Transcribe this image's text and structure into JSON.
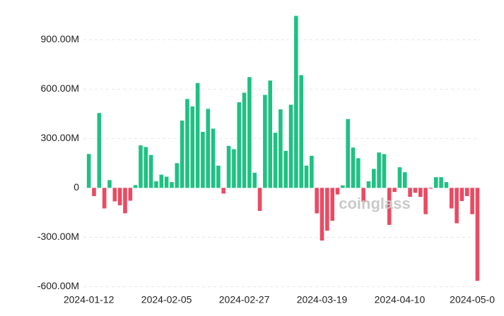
{
  "chart_data": {
    "type": "bar",
    "watermark": "coinglass",
    "categories": [
      "2024-01-12",
      null,
      null,
      null,
      null,
      null,
      null,
      null,
      null,
      null,
      null,
      null,
      null,
      null,
      null,
      "2024-02-05",
      null,
      null,
      null,
      null,
      null,
      null,
      null,
      null,
      null,
      null,
      null,
      null,
      null,
      null,
      "2024-02-27",
      null,
      null,
      null,
      null,
      null,
      null,
      null,
      null,
      null,
      null,
      null,
      null,
      null,
      null,
      "2024-03-19",
      null,
      null,
      null,
      null,
      null,
      null,
      null,
      null,
      null,
      null,
      null,
      null,
      null,
      null,
      "2024-04-10",
      null,
      null,
      null,
      null,
      null,
      null,
      null,
      null,
      null,
      null,
      null,
      null,
      null,
      "2024-05-0",
      null
    ],
    "values": [
      206,
      -50,
      455,
      -125,
      47,
      -82,
      -106,
      -155,
      -78,
      17,
      258,
      248,
      200,
      40,
      80,
      68,
      35,
      150,
      409,
      540,
      495,
      637,
      340,
      480,
      360,
      135,
      -35,
      255,
      235,
      520,
      578,
      673,
      92,
      -140,
      565,
      652,
      335,
      477,
      225,
      505,
      1045,
      685,
      135,
      195,
      -155,
      -320,
      -260,
      -200,
      -40,
      15,
      418,
      245,
      180,
      -85,
      40,
      115,
      215,
      205,
      -225,
      -25,
      125,
      95,
      -55,
      -30,
      -55,
      -160,
      -5,
      65,
      65,
      35,
      -125,
      -215,
      -80,
      -50,
      -160,
      -565
    ],
    "positive_color": "#1fc183",
    "negative_color": "#ea4a63",
    "ylim": [
      -620,
      1060
    ],
    "yticks": [
      {
        "value": -600,
        "label": "-600.00M"
      },
      {
        "value": -300,
        "label": "-300.00M"
      },
      0,
      {
        "value": 300,
        "label": "300.00M"
      },
      {
        "value": 600,
        "label": "600.00M"
      },
      {
        "value": 900,
        "label": "900.00M"
      }
    ],
    "grid": true
  }
}
